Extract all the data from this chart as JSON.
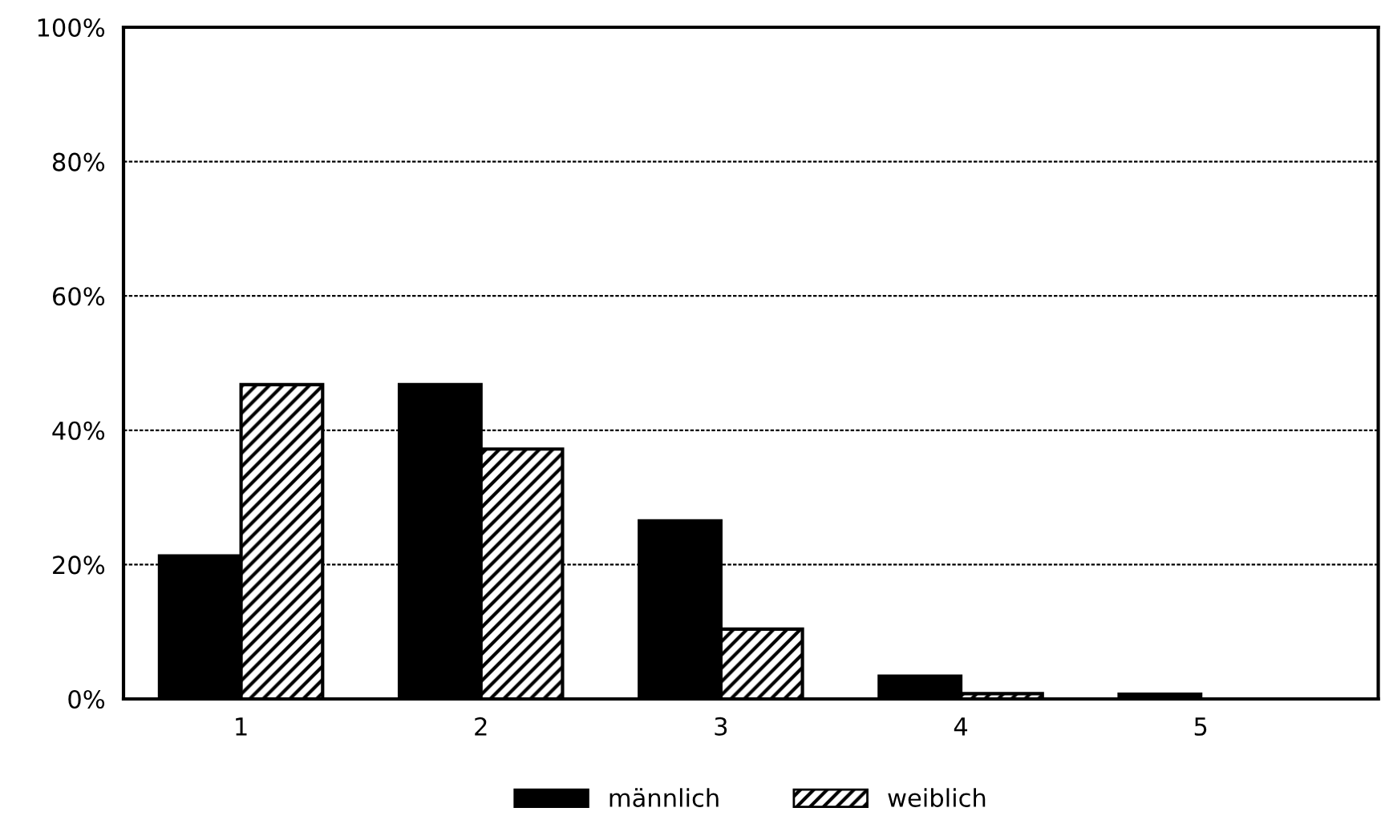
{
  "chart_data": {
    "type": "bar",
    "categories": [
      "1",
      "2",
      "3",
      "4",
      "5"
    ],
    "series": [
      {
        "name": "männlich",
        "color": "#000000",
        "values": [
          21.3,
          46.8,
          26.5,
          3.4,
          0.7
        ]
      },
      {
        "name": "weiblich",
        "color": "#000000",
        "values": [
          46.8,
          37.2,
          10.4,
          0.8,
          0
        ]
      }
    ],
    "ylim": [
      0,
      100
    ],
    "yticks": [
      {
        "value": 0,
        "label": "0%"
      },
      {
        "value": 20,
        "label": "20%"
      },
      {
        "value": 40,
        "label": "40%"
      },
      {
        "value": 60,
        "label": "60%"
      },
      {
        "value": 80,
        "label": "80%"
      },
      {
        "value": 100,
        "label": "100%"
      }
    ],
    "grid": "y",
    "legend": "bottom"
  }
}
